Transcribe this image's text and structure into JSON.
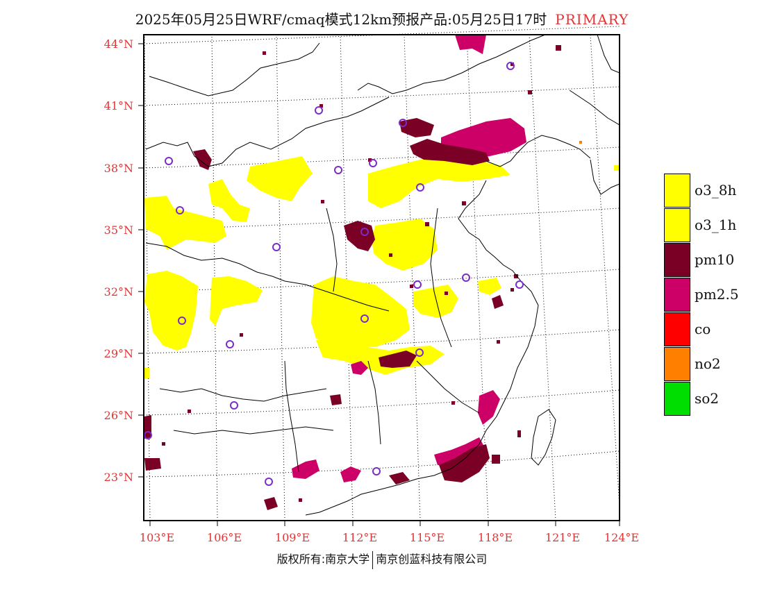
{
  "header": {
    "title": "2025年05月25日WRF/cmaq模式12km预报产品:05月25日17时",
    "primary_label": "PRIMARY",
    "primary_color": "#e53333"
  },
  "axes": {
    "lat_labels": [
      "44°N",
      "41°N",
      "38°N",
      "35°N",
      "32°N",
      "29°N",
      "26°N",
      "23°N"
    ],
    "lon_labels": [
      "103°E",
      "106°E",
      "109°E",
      "112°E",
      "115°E",
      "118°E",
      "121°E",
      "124°E"
    ],
    "label_color": "#e53333"
  },
  "legend": {
    "items": [
      {
        "label": "o3_8h",
        "color": "#ffff00"
      },
      {
        "label": "o3_1h",
        "color": "#ffff00"
      },
      {
        "label": "pm10",
        "color": "#7a0026"
      },
      {
        "label": "pm2.5",
        "color": "#cc0066"
      },
      {
        "label": "co",
        "color": "#ff0000"
      },
      {
        "label": "no2",
        "color": "#ff8000"
      },
      {
        "label": "so2",
        "color": "#00dd00"
      }
    ]
  },
  "footer": {
    "left": "版权所有:南京大学",
    "right": "南京创蓝科技有限公司"
  }
}
